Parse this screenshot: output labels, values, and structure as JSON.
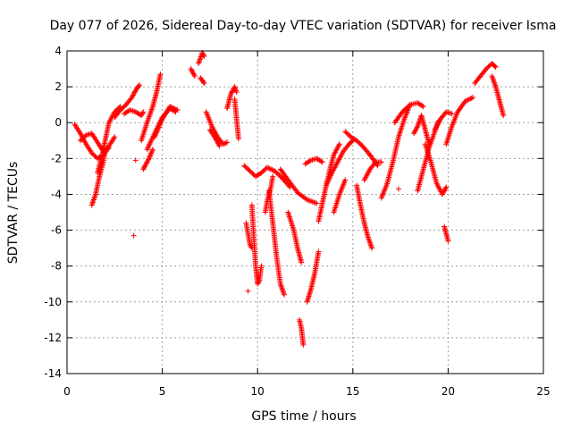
{
  "chart_data": {
    "type": "scatter",
    "title": "Day 077 of 2026, Sidereal Day-to-day VTEC variation (SDTVAR) for receiver Isma",
    "xlabel": "GPS time / hours",
    "ylabel": "SDTVAR / TECUs",
    "xlim": [
      0,
      25
    ],
    "ylim": [
      -14,
      4
    ],
    "xticks": [
      0,
      5,
      10,
      15,
      20,
      25
    ],
    "yticks": [
      -14,
      -12,
      -10,
      -8,
      -6,
      -4,
      -2,
      0,
      2,
      4
    ],
    "grid": true,
    "marker": "+",
    "color": "#ff0000",
    "series": [
      {
        "name": "SDTVAR",
        "tracks": [
          {
            "x": [
              0.4,
              0.7,
              1.0,
              1.3,
              1.6,
              1.9,
              2.2
            ],
            "y": [
              -0.1,
              -0.6,
              -1.2,
              -1.7,
              -2.0,
              -1.8,
              -1.4
            ]
          },
          {
            "x": [
              0.7,
              1.0,
              1.3,
              1.6,
              1.9,
              2.2,
              2.5
            ],
            "y": [
              -1.0,
              -0.7,
              -0.6,
              -1.1,
              -1.6,
              -1.3,
              -0.8
            ]
          },
          {
            "x": [
              1.3,
              1.5,
              1.7,
              1.9,
              2.0
            ],
            "y": [
              -4.6,
              -4.0,
              -3.0,
              -2.2,
              -1.6
            ]
          },
          {
            "x": [
              1.6,
              1.8,
              2.0,
              2.2,
              2.5,
              2.8
            ],
            "y": [
              -2.8,
              -2.0,
              -1.0,
              0.0,
              0.6,
              0.9
            ]
          },
          {
            "x": [
              2.5,
              2.8,
              3.1,
              3.4,
              3.6,
              3.8
            ],
            "y": [
              0.3,
              0.7,
              1.0,
              1.4,
              1.8,
              2.1
            ]
          },
          {
            "x": [
              3.0,
              3.3,
              3.6,
              3.9,
              4.0
            ],
            "y": [
              0.5,
              0.7,
              0.6,
              0.4,
              0.6
            ]
          },
          {
            "x": [
              3.9,
              4.2,
              4.5,
              4.7,
              4.9
            ],
            "y": [
              -1.0,
              0.0,
              0.9,
              1.7,
              2.7
            ]
          },
          {
            "x": [
              4.0,
              4.1,
              4.3,
              4.5
            ],
            "y": [
              -2.6,
              -2.4,
              -2.0,
              -1.5
            ]
          },
          {
            "x": [
              4.2,
              4.6,
              5.0,
              5.4,
              5.7
            ],
            "y": [
              -1.5,
              -0.6,
              0.3,
              0.8,
              0.6
            ]
          },
          {
            "x": [
              4.6,
              5.0,
              5.4,
              5.8
            ],
            "y": [
              -0.8,
              0.2,
              0.9,
              0.7
            ]
          },
          {
            "x": [
              6.5,
              6.7
            ],
            "y": [
              3.0,
              2.6
            ]
          },
          {
            "x": [
              6.9,
              7.1,
              7.2
            ],
            "y": [
              3.3,
              3.9,
              3.7
            ]
          },
          {
            "x": [
              7.0,
              7.2
            ],
            "y": [
              2.5,
              2.2
            ]
          },
          {
            "x": [
              7.3,
              7.6,
              7.9,
              8.2,
              8.4
            ],
            "y": [
              0.6,
              -0.2,
              -0.8,
              -1.2,
              -1.1
            ]
          },
          {
            "x": [
              7.5,
              7.8,
              8.0
            ],
            "y": [
              -0.4,
              -0.9,
              -1.3
            ]
          },
          {
            "x": [
              8.4,
              8.6,
              8.8,
              8.9
            ],
            "y": [
              0.8,
              1.6,
              2.0,
              1.7
            ]
          },
          {
            "x": [
              8.8,
              8.9,
              9.0
            ],
            "y": [
              1.3,
              0.2,
              -0.9
            ]
          },
          {
            "x": [
              9.3,
              9.6,
              9.9,
              10.2,
              10.5,
              10.9,
              11.3,
              11.7
            ],
            "y": [
              -2.4,
              -2.7,
              -3.0,
              -2.8,
              -2.5,
              -2.7,
              -3.1,
              -3.6
            ]
          },
          {
            "x": [
              9.4,
              9.5,
              9.6,
              9.7
            ],
            "y": [
              -5.6,
              -6.2,
              -6.8,
              -7.0
            ]
          },
          {
            "x": [
              9.7,
              9.8,
              9.9,
              10.0,
              10.1,
              10.2
            ],
            "y": [
              -4.6,
              -6.4,
              -8.0,
              -9.0,
              -8.8,
              -8.0
            ]
          },
          {
            "x": [
              10.4,
              10.5,
              10.7,
              10.8
            ],
            "y": [
              -5.0,
              -4.4,
              -3.6,
              -3.0
            ]
          },
          {
            "x": [
              10.6,
              10.8,
              11.0,
              11.2,
              11.4
            ],
            "y": [
              -3.8,
              -5.6,
              -7.5,
              -9.0,
              -9.6
            ]
          },
          {
            "x": [
              11.2,
              11.6,
              12.1,
              12.6,
              13.1
            ],
            "y": [
              -2.6,
              -3.2,
              -3.9,
              -4.3,
              -4.5
            ]
          },
          {
            "x": [
              11.6,
              11.9,
              12.1,
              12.3
            ],
            "y": [
              -5.0,
              -6.0,
              -7.0,
              -7.8
            ]
          },
          {
            "x": [
              12.6,
              12.8,
              13.0,
              13.2
            ],
            "y": [
              -10.0,
              -9.3,
              -8.4,
              -7.2
            ]
          },
          {
            "x": [
              12.2,
              12.3,
              12.4
            ],
            "y": [
              -11.0,
              -11.5,
              -12.4
            ]
          },
          {
            "x": [
              12.5,
              12.8,
              13.1,
              13.4
            ],
            "y": [
              -2.3,
              -2.1,
              -2.0,
              -2.2
            ]
          },
          {
            "x": [
              13.2,
              13.4,
              13.6,
              13.8,
              14.0,
              14.3
            ],
            "y": [
              -5.5,
              -4.5,
              -3.5,
              -2.6,
              -1.8,
              -1.2
            ]
          },
          {
            "x": [
              13.6,
              13.9,
              14.2,
              14.5,
              14.8,
              15.0
            ],
            "y": [
              -3.5,
              -2.8,
              -2.2,
              -1.6,
              -1.2,
              -1.0
            ]
          },
          {
            "x": [
              14.0,
              14.3,
              14.6
            ],
            "y": [
              -5.0,
              -4.0,
              -3.2
            ]
          },
          {
            "x": [
              14.6,
              14.9,
              15.2,
              15.5,
              15.9,
              16.3
            ],
            "y": [
              -0.5,
              -0.8,
              -1.0,
              -1.3,
              -1.8,
              -2.4
            ]
          },
          {
            "x": [
              15.2,
              15.4,
              15.6,
              15.8,
              16.0
            ],
            "y": [
              -3.5,
              -4.6,
              -5.6,
              -6.4,
              -7.0
            ]
          },
          {
            "x": [
              15.6,
              15.9,
              16.2,
              16.5
            ],
            "y": [
              -3.2,
              -2.6,
              -2.2,
              -2.2
            ]
          },
          {
            "x": [
              16.5,
              16.8,
              17.1,
              17.4,
              17.7,
              18.0
            ],
            "y": [
              -4.2,
              -3.4,
              -2.2,
              -0.8,
              0.2,
              1.0
            ]
          },
          {
            "x": [
              17.2,
              17.6,
              18.0,
              18.4,
              18.7
            ],
            "y": [
              0.0,
              0.6,
              1.0,
              1.1,
              0.9
            ]
          },
          {
            "x": [
              18.2,
              18.4,
              18.6,
              18.8,
              19.0
            ],
            "y": [
              -0.6,
              -0.2,
              0.4,
              -0.4,
              -1.2
            ]
          },
          {
            "x": [
              18.4,
              18.7,
              19.0,
              19.3,
              19.5
            ],
            "y": [
              -3.8,
              -2.6,
              -1.4,
              -0.5,
              0.1
            ]
          },
          {
            "x": [
              18.8,
              19.1,
              19.4,
              19.7,
              19.9
            ],
            "y": [
              -1.2,
              -2.2,
              -3.4,
              -4.0,
              -3.6
            ]
          },
          {
            "x": [
              19.3,
              19.6,
              19.9,
              20.2
            ],
            "y": [
              -0.4,
              0.2,
              0.6,
              0.5
            ]
          },
          {
            "x": [
              19.8,
              19.9,
              20.0
            ],
            "y": [
              -5.8,
              -6.2,
              -6.6
            ]
          },
          {
            "x": [
              19.9,
              20.2,
              20.5,
              20.9,
              21.3
            ],
            "y": [
              -1.2,
              -0.2,
              0.6,
              1.2,
              1.4
            ]
          },
          {
            "x": [
              21.4,
              21.7,
              22.0,
              22.3,
              22.5
            ],
            "y": [
              2.2,
              2.6,
              3.0,
              3.3,
              3.1
            ]
          },
          {
            "x": [
              22.3,
              22.5,
              22.7,
              22.9
            ],
            "y": [
              2.6,
              2.0,
              1.2,
              0.4
            ]
          }
        ],
        "isolated": [
          {
            "x": 3.5,
            "y": -6.3
          },
          {
            "x": 3.6,
            "y": -2.1
          },
          {
            "x": 9.5,
            "y": -9.4
          },
          {
            "x": 17.4,
            "y": -3.7
          }
        ]
      }
    ]
  }
}
